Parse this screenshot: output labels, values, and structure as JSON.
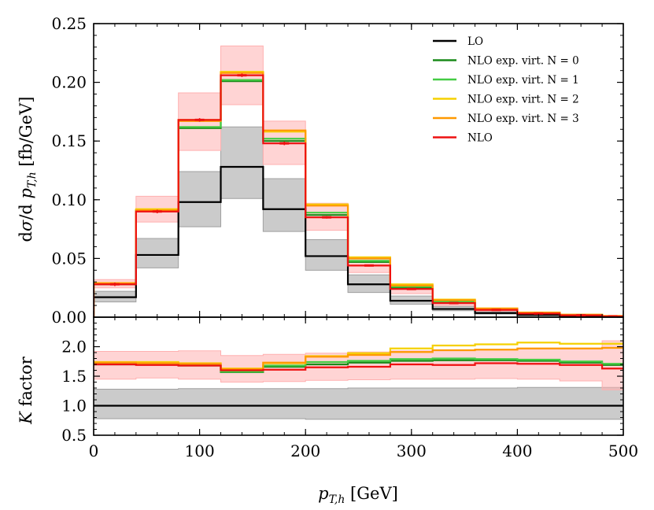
{
  "chart_data": [
    {
      "panel": "main",
      "type": "step",
      "ylabel": "dσ/d p_{T,h} [fb/GeV]",
      "ylabel_parts": {
        "d1": "d",
        "sigma": "σ",
        "slash": "/d ",
        "p": "p",
        "sub": "T,h",
        "unit": " [fb/GeV]"
      },
      "ylim": [
        0,
        0.25
      ],
      "yticks": [
        "0.00",
        "0.05",
        "0.10",
        "0.15",
        "0.20",
        "0.25"
      ],
      "ytick_values": [
        0,
        0.05,
        0.1,
        0.15,
        0.2,
        0.25
      ],
      "xlim": [
        0,
        500
      ],
      "bin_edges": [
        0,
        40,
        80,
        120,
        160,
        200,
        240,
        280,
        320,
        360,
        400,
        440,
        480,
        500
      ],
      "series": [
        {
          "name": "LO",
          "color": "#000000",
          "values": [
            0.017,
            0.053,
            0.098,
            0.128,
            0.092,
            0.052,
            0.028,
            0.014,
            0.007,
            0.0035,
            0.0018,
            0.0009,
            0.0004
          ],
          "band_low": [
            0.013,
            0.042,
            0.077,
            0.101,
            0.073,
            0.04,
            0.021,
            0.011,
            0.0055,
            0.0027,
            0.0014,
            0.0007,
            0.0003
          ],
          "band_high": [
            0.022,
            0.067,
            0.124,
            0.162,
            0.118,
            0.066,
            0.036,
            0.018,
            0.0092,
            0.0046,
            0.0024,
            0.0012,
            0.0005
          ],
          "band_color": "#a0a0a0"
        },
        {
          "name": "NLO exp. virt. N = 0",
          "color": "#1a8a1a",
          "values": [
            0.028,
            0.091,
            0.161,
            0.201,
            0.15,
            0.087,
            0.047,
            0.025,
            0.013,
            0.0069,
            0.0037,
            0.0019,
            0.0008
          ]
        },
        {
          "name": "NLO exp. virt. N = 1",
          "color": "#44cc44",
          "values": [
            0.028,
            0.091,
            0.162,
            0.202,
            0.152,
            0.089,
            0.048,
            0.026,
            0.0135,
            0.0071,
            0.0038,
            0.002,
            0.0009
          ]
        },
        {
          "name": "NLO exp. virt. N = 2",
          "color": "#f5d000",
          "values": [
            0.029,
            0.092,
            0.168,
            0.209,
            0.158,
            0.096,
            0.051,
            0.028,
            0.015,
            0.0075,
            0.004,
            0.0021,
            0.001
          ]
        },
        {
          "name": "NLO exp. virt. N = 3",
          "color": "#ff9900",
          "values": [
            0.029,
            0.091,
            0.167,
            0.208,
            0.159,
            0.095,
            0.05,
            0.027,
            0.0145,
            0.0074,
            0.0039,
            0.0021,
            0.001
          ]
        },
        {
          "name": "NLO",
          "color": "#ee1111",
          "values": [
            0.028,
            0.09,
            0.168,
            0.206,
            0.148,
            0.085,
            0.044,
            0.024,
            0.012,
            0.0062,
            0.0031,
            0.0016,
            0.0007
          ],
          "errors": [
            0.0015,
            0.0015,
            0.0015,
            0.0015,
            0.0015,
            0.001,
            0.0008,
            0.0005,
            0.0004,
            0.0003,
            0.0002,
            0.0002,
            0.0002
          ],
          "band_low": [
            0.025,
            0.081,
            0.142,
            0.181,
            0.13,
            0.074,
            0.038,
            0.02,
            0.01,
            0.0052,
            0.0026,
            0.0013,
            0.0006
          ],
          "band_high": [
            0.032,
            0.103,
            0.191,
            0.231,
            0.167,
            0.097,
            0.051,
            0.028,
            0.0145,
            0.0074,
            0.0038,
            0.002,
            0.0009
          ],
          "band_color": "#ffb0b0"
        }
      ],
      "legend_position": "upper-right"
    },
    {
      "panel": "ratio",
      "type": "step",
      "xlabel": "p_{T,h} [GeV]",
      "xlabel_parts": {
        "p": "p",
        "sub": "T,h",
        "unit": " [GeV]"
      },
      "ylabel": "K factor",
      "ylabel_parts": {
        "k": "K",
        "rest": " factor"
      },
      "ylim": [
        0.5,
        2.5
      ],
      "yticks": [
        "0.5",
        "1.0",
        "1.5",
        "2.0"
      ],
      "ytick_values": [
        0.5,
        1.0,
        1.5,
        2.0
      ],
      "xlim": [
        0,
        500
      ],
      "xticks": [
        "0",
        "100",
        "200",
        "300",
        "400",
        "500"
      ],
      "xtick_values": [
        0,
        100,
        200,
        300,
        400,
        500
      ],
      "bin_edges": [
        0,
        40,
        80,
        120,
        160,
        200,
        240,
        280,
        320,
        360,
        400,
        440,
        480,
        500
      ],
      "series": [
        {
          "name": "LO",
          "color": "#000000",
          "values": [
            1.0,
            1.0,
            1.0,
            1.0,
            1.0,
            1.0,
            1.0,
            1.0,
            1.0,
            1.0,
            1.0,
            1.0,
            1.0
          ],
          "band_low": [
            0.78,
            0.78,
            0.78,
            0.78,
            0.78,
            0.77,
            0.77,
            0.77,
            0.77,
            0.77,
            0.77,
            0.77,
            0.77
          ],
          "band_high": [
            1.28,
            1.28,
            1.29,
            1.29,
            1.29,
            1.29,
            1.3,
            1.3,
            1.3,
            1.3,
            1.31,
            1.31,
            1.31
          ],
          "band_color": "#a0a0a0"
        },
        {
          "name": "NLO exp. virt. N = 0",
          "color": "#1a8a1a",
          "values": [
            1.7,
            1.72,
            1.68,
            1.57,
            1.66,
            1.7,
            1.73,
            1.76,
            1.77,
            1.77,
            1.76,
            1.73,
            1.69
          ]
        },
        {
          "name": "NLO exp. virt. N = 1",
          "color": "#44cc44",
          "values": [
            1.71,
            1.72,
            1.69,
            1.58,
            1.68,
            1.74,
            1.76,
            1.79,
            1.8,
            1.79,
            1.78,
            1.75,
            1.71
          ]
        },
        {
          "name": "NLO exp. virt. N = 2",
          "color": "#f5d000",
          "values": [
            1.74,
            1.74,
            1.72,
            1.63,
            1.72,
            1.84,
            1.89,
            1.97,
            2.02,
            2.04,
            2.07,
            2.05,
            2.05
          ]
        },
        {
          "name": "NLO exp. virt. N = 3",
          "color": "#ff9900",
          "values": [
            1.73,
            1.72,
            1.71,
            1.62,
            1.73,
            1.83,
            1.86,
            1.91,
            1.94,
            1.95,
            1.97,
            1.97,
            1.98
          ]
        },
        {
          "name": "NLO",
          "color": "#ee1111",
          "values": [
            1.7,
            1.69,
            1.68,
            1.6,
            1.61,
            1.65,
            1.66,
            1.7,
            1.69,
            1.72,
            1.71,
            1.69,
            1.63
          ],
          "band_low": [
            1.45,
            1.47,
            1.45,
            1.4,
            1.41,
            1.43,
            1.44,
            1.45,
            1.45,
            1.46,
            1.45,
            1.42,
            1.27
          ],
          "band_high": [
            1.92,
            1.92,
            1.93,
            1.85,
            1.87,
            1.89,
            1.91,
            1.93,
            1.94,
            1.95,
            1.96,
            1.96,
            2.1
          ],
          "band_color": "#ffb0b0"
        }
      ]
    }
  ]
}
